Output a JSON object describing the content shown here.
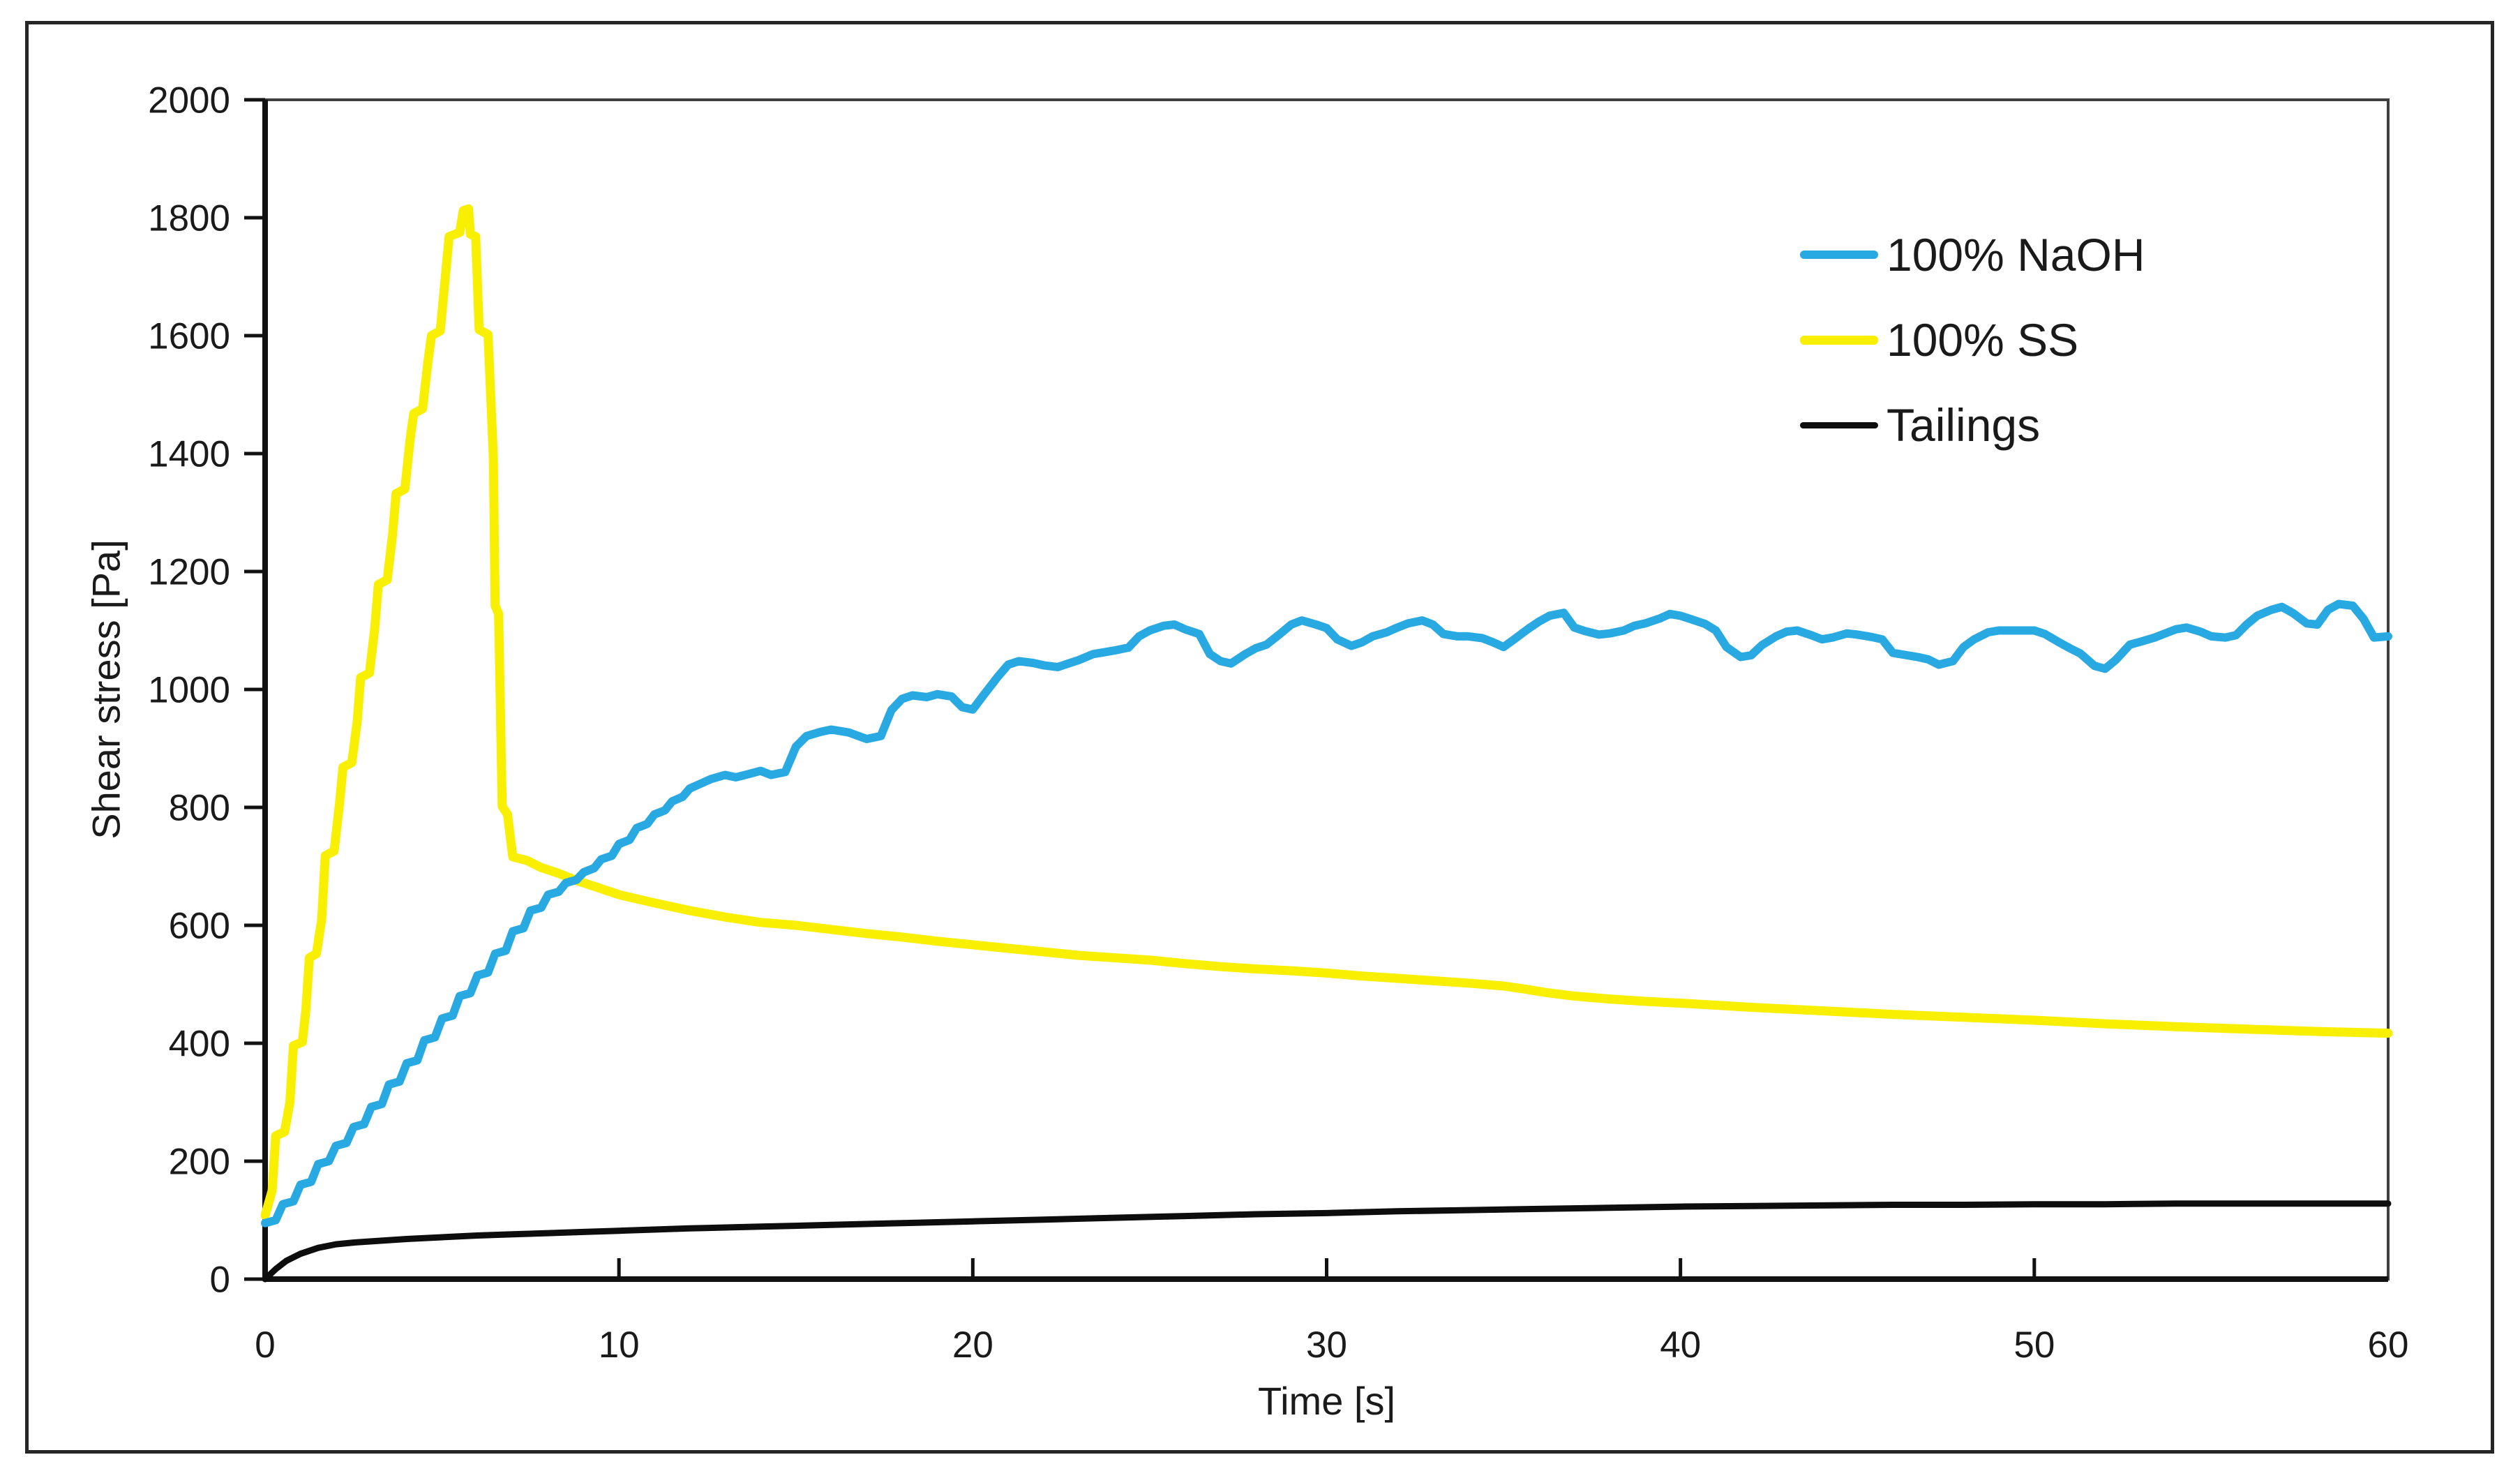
{
  "figure": {
    "background": "#ffffff",
    "border_color": "#262626"
  },
  "chart_data": {
    "type": "line",
    "title": "",
    "xlabel": "Time [s]",
    "ylabel": "Shear stress [Pa]",
    "xlim": [
      0,
      60
    ],
    "ylim": [
      0,
      2000
    ],
    "x_ticks": [
      0,
      10,
      20,
      30,
      40,
      50,
      60
    ],
    "y_ticks": [
      0,
      200,
      400,
      600,
      800,
      1000,
      1200,
      1400,
      1600,
      1800,
      2000
    ],
    "grid": false,
    "legend_position": "inside-upper-right",
    "frame_color": "#3f3f3f",
    "axis_color": "#111111",
    "text_color": "#1a1a1a",
    "series": [
      {
        "name": "100% NaOH",
        "color": "#29A9E2",
        "width": 12,
        "points": [
          [
            0,
            95
          ],
          [
            0.3,
            100
          ],
          [
            0.5,
            127
          ],
          [
            0.8,
            132
          ],
          [
            1,
            160
          ],
          [
            1.3,
            165
          ],
          [
            1.5,
            195
          ],
          [
            1.8,
            200
          ],
          [
            2,
            226
          ],
          [
            2.3,
            231
          ],
          [
            2.5,
            258
          ],
          [
            2.8,
            263
          ],
          [
            3,
            292
          ],
          [
            3.3,
            297
          ],
          [
            3.5,
            330
          ],
          [
            3.8,
            335
          ],
          [
            4,
            366
          ],
          [
            4.3,
            371
          ],
          [
            4.5,
            405
          ],
          [
            4.8,
            410
          ],
          [
            5,
            442
          ],
          [
            5.3,
            447
          ],
          [
            5.5,
            480
          ],
          [
            5.8,
            485
          ],
          [
            6,
            515
          ],
          [
            6.3,
            520
          ],
          [
            6.5,
            552
          ],
          [
            6.8,
            557
          ],
          [
            7,
            590
          ],
          [
            7.3,
            595
          ],
          [
            7.5,
            625
          ],
          [
            7.8,
            630
          ],
          [
            8,
            652
          ],
          [
            8.3,
            657
          ],
          [
            8.5,
            672
          ],
          [
            8.8,
            677
          ],
          [
            9,
            690
          ],
          [
            9.3,
            697
          ],
          [
            9.5,
            712
          ],
          [
            9.8,
            718
          ],
          [
            10,
            738
          ],
          [
            10.3,
            745
          ],
          [
            10.5,
            765
          ],
          [
            10.8,
            772
          ],
          [
            11,
            788
          ],
          [
            11.3,
            795
          ],
          [
            11.5,
            810
          ],
          [
            11.8,
            818
          ],
          [
            12,
            832
          ],
          [
            12.3,
            840
          ],
          [
            12.6,
            848
          ],
          [
            13,
            855
          ],
          [
            13.3,
            851
          ],
          [
            13.7,
            857
          ],
          [
            14,
            862
          ],
          [
            14.3,
            855
          ],
          [
            14.7,
            860
          ],
          [
            15,
            903
          ],
          [
            15.3,
            921
          ],
          [
            15.7,
            928
          ],
          [
            16,
            932
          ],
          [
            16.5,
            927
          ],
          [
            17,
            916
          ],
          [
            17.4,
            921
          ],
          [
            17.7,
            965
          ],
          [
            18,
            984
          ],
          [
            18.3,
            990
          ],
          [
            18.7,
            987
          ],
          [
            19,
            992
          ],
          [
            19.4,
            988
          ],
          [
            19.7,
            970
          ],
          [
            20,
            966
          ],
          [
            20.3,
            990
          ],
          [
            20.7,
            1021
          ],
          [
            21,
            1042
          ],
          [
            21.3,
            1048
          ],
          [
            21.7,
            1045
          ],
          [
            22,
            1041
          ],
          [
            22.4,
            1038
          ],
          [
            22.7,
            1044
          ],
          [
            23,
            1050
          ],
          [
            23.4,
            1060
          ],
          [
            23.7,
            1063
          ],
          [
            24,
            1066
          ],
          [
            24.4,
            1071
          ],
          [
            24.7,
            1090
          ],
          [
            25,
            1100
          ],
          [
            25.4,
            1108
          ],
          [
            25.7,
            1110
          ],
          [
            26,
            1102
          ],
          [
            26.4,
            1094
          ],
          [
            26.7,
            1060
          ],
          [
            27,
            1048
          ],
          [
            27.3,
            1044
          ],
          [
            27.7,
            1060
          ],
          [
            28,
            1070
          ],
          [
            28.3,
            1076
          ],
          [
            28.7,
            1095
          ],
          [
            29,
            1110
          ],
          [
            29.3,
            1117
          ],
          [
            29.7,
            1110
          ],
          [
            30,
            1104
          ],
          [
            30.3,
            1085
          ],
          [
            30.7,
            1074
          ],
          [
            31,
            1080
          ],
          [
            31.3,
            1090
          ],
          [
            31.7,
            1097
          ],
          [
            32,
            1105
          ],
          [
            32.3,
            1112
          ],
          [
            32.7,
            1117
          ],
          [
            33,
            1110
          ],
          [
            33.3,
            1094
          ],
          [
            33.7,
            1090
          ],
          [
            34,
            1090
          ],
          [
            34.4,
            1087
          ],
          [
            34.7,
            1080
          ],
          [
            35,
            1072
          ],
          [
            35.3,
            1085
          ],
          [
            35.7,
            1103
          ],
          [
            36,
            1115
          ],
          [
            36.3,
            1125
          ],
          [
            36.7,
            1130
          ],
          [
            37,
            1105
          ],
          [
            37.3,
            1099
          ],
          [
            37.7,
            1093
          ],
          [
            38,
            1095
          ],
          [
            38.4,
            1100
          ],
          [
            38.7,
            1108
          ],
          [
            39,
            1112
          ],
          [
            39.4,
            1120
          ],
          [
            39.7,
            1128
          ],
          [
            40,
            1125
          ],
          [
            40.4,
            1117
          ],
          [
            40.7,
            1111
          ],
          [
            41,
            1100
          ],
          [
            41.3,
            1072
          ],
          [
            41.7,
            1055
          ],
          [
            42,
            1058
          ],
          [
            42.3,
            1075
          ],
          [
            42.7,
            1090
          ],
          [
            43,
            1098
          ],
          [
            43.3,
            1100
          ],
          [
            43.7,
            1092
          ],
          [
            44,
            1085
          ],
          [
            44.3,
            1088
          ],
          [
            44.7,
            1095
          ],
          [
            45,
            1093
          ],
          [
            45.4,
            1089
          ],
          [
            45.7,
            1085
          ],
          [
            46,
            1062
          ],
          [
            46.4,
            1058
          ],
          [
            46.7,
            1055
          ],
          [
            47,
            1051
          ],
          [
            47.3,
            1042
          ],
          [
            47.7,
            1048
          ],
          [
            48,
            1072
          ],
          [
            48.3,
            1085
          ],
          [
            48.7,
            1097
          ],
          [
            49,
            1100
          ],
          [
            49.5,
            1100
          ],
          [
            50,
            1100
          ],
          [
            50.3,
            1094
          ],
          [
            50.7,
            1080
          ],
          [
            51,
            1070
          ],
          [
            51.3,
            1061
          ],
          [
            51.7,
            1040
          ],
          [
            52,
            1035
          ],
          [
            52.3,
            1050
          ],
          [
            52.7,
            1076
          ],
          [
            53,
            1081
          ],
          [
            53.4,
            1088
          ],
          [
            53.7,
            1095
          ],
          [
            54,
            1102
          ],
          [
            54.3,
            1105
          ],
          [
            54.7,
            1098
          ],
          [
            55,
            1090
          ],
          [
            55.4,
            1088
          ],
          [
            55.7,
            1092
          ],
          [
            56,
            1110
          ],
          [
            56.3,
            1125
          ],
          [
            56.7,
            1135
          ],
          [
            57,
            1140
          ],
          [
            57.3,
            1130
          ],
          [
            57.7,
            1112
          ],
          [
            58,
            1110
          ],
          [
            58.3,
            1135
          ],
          [
            58.6,
            1145
          ],
          [
            59,
            1142
          ],
          [
            59.3,
            1120
          ],
          [
            59.6,
            1088
          ],
          [
            60,
            1090
          ]
        ]
      },
      {
        "name": "100% SS",
        "color": "#F9EF00",
        "width": 13,
        "points": [
          [
            0,
            108
          ],
          [
            0.2,
            150
          ],
          [
            0.3,
            243
          ],
          [
            0.55,
            250
          ],
          [
            0.7,
            300
          ],
          [
            0.8,
            396
          ],
          [
            1.05,
            402
          ],
          [
            1.15,
            455
          ],
          [
            1.25,
            545
          ],
          [
            1.45,
            552
          ],
          [
            1.6,
            610
          ],
          [
            1.7,
            718
          ],
          [
            1.95,
            726
          ],
          [
            2.1,
            805
          ],
          [
            2.2,
            868
          ],
          [
            2.45,
            876
          ],
          [
            2.6,
            945
          ],
          [
            2.7,
            1020
          ],
          [
            2.95,
            1028
          ],
          [
            3.1,
            1105
          ],
          [
            3.2,
            1178
          ],
          [
            3.45,
            1186
          ],
          [
            3.6,
            1262
          ],
          [
            3.7,
            1332
          ],
          [
            3.95,
            1340
          ],
          [
            4.1,
            1425
          ],
          [
            4.2,
            1468
          ],
          [
            4.45,
            1476
          ],
          [
            4.6,
            1555
          ],
          [
            4.7,
            1600
          ],
          [
            4.95,
            1608
          ],
          [
            5.1,
            1705
          ],
          [
            5.2,
            1768
          ],
          [
            5.5,
            1775
          ],
          [
            5.6,
            1812
          ],
          [
            5.75,
            1815
          ],
          [
            5.8,
            1772
          ],
          [
            5.95,
            1768
          ],
          [
            6.05,
            1610
          ],
          [
            6.3,
            1602
          ],
          [
            6.45,
            1395
          ],
          [
            6.5,
            1142
          ],
          [
            6.6,
            1128
          ],
          [
            6.7,
            802
          ],
          [
            6.85,
            788
          ],
          [
            7,
            716
          ],
          [
            7.4,
            710
          ],
          [
            7.8,
            698
          ],
          [
            8.3,
            688
          ],
          [
            8.8,
            676
          ],
          [
            9.3,
            666
          ],
          [
            10,
            652
          ],
          [
            11,
            638
          ],
          [
            12,
            625
          ],
          [
            13,
            614
          ],
          [
            14,
            605
          ],
          [
            15,
            600
          ],
          [
            16,
            593
          ],
          [
            17,
            586
          ],
          [
            18,
            580
          ],
          [
            19,
            573
          ],
          [
            20,
            567
          ],
          [
            21,
            561
          ],
          [
            22,
            555
          ],
          [
            23,
            549
          ],
          [
            24,
            545
          ],
          [
            25,
            541
          ],
          [
            26,
            535
          ],
          [
            27,
            530
          ],
          [
            28,
            526
          ],
          [
            29,
            523
          ],
          [
            30,
            519
          ],
          [
            31,
            514
          ],
          [
            32,
            510
          ],
          [
            33,
            506
          ],
          [
            34,
            502
          ],
          [
            35,
            497
          ],
          [
            35.6,
            492
          ],
          [
            36.2,
            486
          ],
          [
            37,
            480
          ],
          [
            38,
            475
          ],
          [
            39,
            471
          ],
          [
            40,
            468
          ],
          [
            42,
            461
          ],
          [
            44,
            455
          ],
          [
            46,
            449
          ],
          [
            48,
            444
          ],
          [
            50,
            439
          ],
          [
            52,
            433
          ],
          [
            54,
            428
          ],
          [
            56,
            424
          ],
          [
            58,
            420
          ],
          [
            60,
            417
          ]
        ]
      },
      {
        "name": "Tailings",
        "color": "#0d0d0d",
        "width": 9,
        "points": [
          [
            0,
            0
          ],
          [
            0.3,
            17
          ],
          [
            0.6,
            31
          ],
          [
            1,
            43
          ],
          [
            1.5,
            53
          ],
          [
            2,
            59
          ],
          [
            2.5,
            62
          ],
          [
            3,
            64
          ],
          [
            4,
            68
          ],
          [
            5,
            71
          ],
          [
            6,
            74
          ],
          [
            7,
            76
          ],
          [
            8,
            78
          ],
          [
            9,
            80
          ],
          [
            10,
            82
          ],
          [
            12,
            86
          ],
          [
            14,
            89
          ],
          [
            16,
            92
          ],
          [
            18,
            95
          ],
          [
            20,
            98
          ],
          [
            22,
            101
          ],
          [
            24,
            104
          ],
          [
            26,
            107
          ],
          [
            28,
            110
          ],
          [
            30,
            112
          ],
          [
            32,
            115
          ],
          [
            34,
            117
          ],
          [
            36,
            119
          ],
          [
            38,
            121
          ],
          [
            40,
            123
          ],
          [
            42,
            124
          ],
          [
            44,
            125
          ],
          [
            46,
            126
          ],
          [
            48,
            126
          ],
          [
            50,
            127
          ],
          [
            52,
            127
          ],
          [
            54,
            128
          ],
          [
            56,
            128
          ],
          [
            58,
            128
          ],
          [
            60,
            128
          ]
        ]
      }
    ]
  }
}
